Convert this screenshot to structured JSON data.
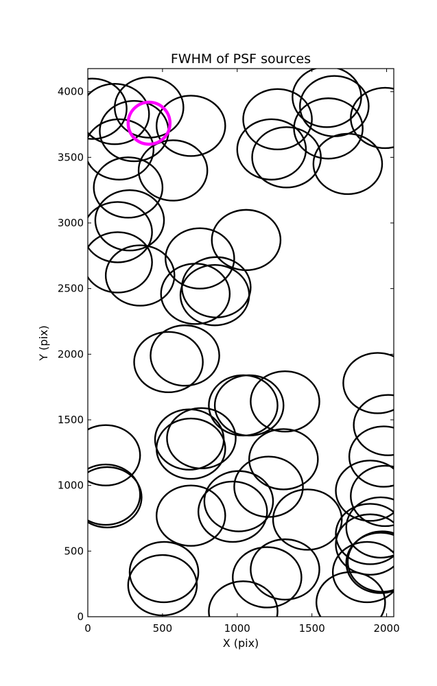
{
  "chart_data": {
    "type": "scatter",
    "title": "FWHM of PSF sources",
    "xlabel": "X (pix)",
    "ylabel": "Y (pix)",
    "xlim": [
      0,
      2048
    ],
    "ylim": [
      0,
      4176
    ],
    "xticks": [
      0,
      500,
      1000,
      1500,
      2000
    ],
    "yticks": [
      0,
      500,
      1000,
      1500,
      2000,
      2500,
      3000,
      3500,
      4000
    ],
    "xtick_labels": [
      "0",
      "500",
      "1000",
      "1500",
      "2000"
    ],
    "ytick_labels": [
      "0",
      "500",
      "1000",
      "1500",
      "2000",
      "2500",
      "3000",
      "3500",
      "4000"
    ],
    "grid": false,
    "marker": "circle",
    "default_color": "#000000",
    "highlight_color": "#ff00ff",
    "circle_radius": 230,
    "points": [
      {
        "x": 30,
        "y": 3870
      },
      {
        "x": 180,
        "y": 3830
      },
      {
        "x": 410,
        "y": 3880
      },
      {
        "x": 310,
        "y": 3700
      },
      {
        "x": 690,
        "y": 3740
      },
      {
        "x": 210,
        "y": 3560
      },
      {
        "x": 570,
        "y": 3400
      },
      {
        "x": 270,
        "y": 3270
      },
      {
        "x": 280,
        "y": 3020
      },
      {
        "x": 200,
        "y": 2930
      },
      {
        "x": 200,
        "y": 2700
      },
      {
        "x": 350,
        "y": 2600
      },
      {
        "x": 750,
        "y": 2730
      },
      {
        "x": 860,
        "y": 2510
      },
      {
        "x": 720,
        "y": 2460
      },
      {
        "x": 850,
        "y": 2450
      },
      {
        "x": 1060,
        "y": 2870
      },
      {
        "x": 540,
        "y": 1940
      },
      {
        "x": 650,
        "y": 1990
      },
      {
        "x": 1040,
        "y": 1610
      },
      {
        "x": 1080,
        "y": 1610
      },
      {
        "x": 1320,
        "y": 1640
      },
      {
        "x": 680,
        "y": 1350
      },
      {
        "x": 760,
        "y": 1360
      },
      {
        "x": 690,
        "y": 1280
      },
      {
        "x": 120,
        "y": 1230
      },
      {
        "x": 120,
        "y": 930
      },
      {
        "x": 130,
        "y": 910
      },
      {
        "x": 1310,
        "y": 1200
      },
      {
        "x": 1210,
        "y": 990
      },
      {
        "x": 1010,
        "y": 880
      },
      {
        "x": 970,
        "y": 800
      },
      {
        "x": 690,
        "y": 770
      },
      {
        "x": 1470,
        "y": 740
      },
      {
        "x": 510,
        "y": 340
      },
      {
        "x": 500,
        "y": 240
      },
      {
        "x": 1320,
        "y": 360
      },
      {
        "x": 1200,
        "y": 300
      },
      {
        "x": 1040,
        "y": 40
      },
      {
        "x": 1760,
        "y": 110
      },
      {
        "x": 1270,
        "y": 3790
      },
      {
        "x": 1230,
        "y": 3560
      },
      {
        "x": 1330,
        "y": 3500
      },
      {
        "x": 1600,
        "y": 3960
      },
      {
        "x": 1650,
        "y": 3890
      },
      {
        "x": 1610,
        "y": 3720
      },
      {
        "x": 1740,
        "y": 3450
      },
      {
        "x": 1990,
        "y": 3800
      },
      {
        "x": 1940,
        "y": 1780
      },
      {
        "x": 2010,
        "y": 1460
      },
      {
        "x": 1980,
        "y": 1220
      },
      {
        "x": 1890,
        "y": 960
      },
      {
        "x": 1990,
        "y": 920
      },
      {
        "x": 1890,
        "y": 630
      },
      {
        "x": 1960,
        "y": 680
      },
      {
        "x": 1890,
        "y": 550
      },
      {
        "x": 1870,
        "y": 340
      },
      {
        "x": 1960,
        "y": 410
      },
      {
        "x": 1970,
        "y": 420
      }
    ],
    "highlight_points": [
      {
        "x": 410,
        "y": 3760
      }
    ]
  }
}
